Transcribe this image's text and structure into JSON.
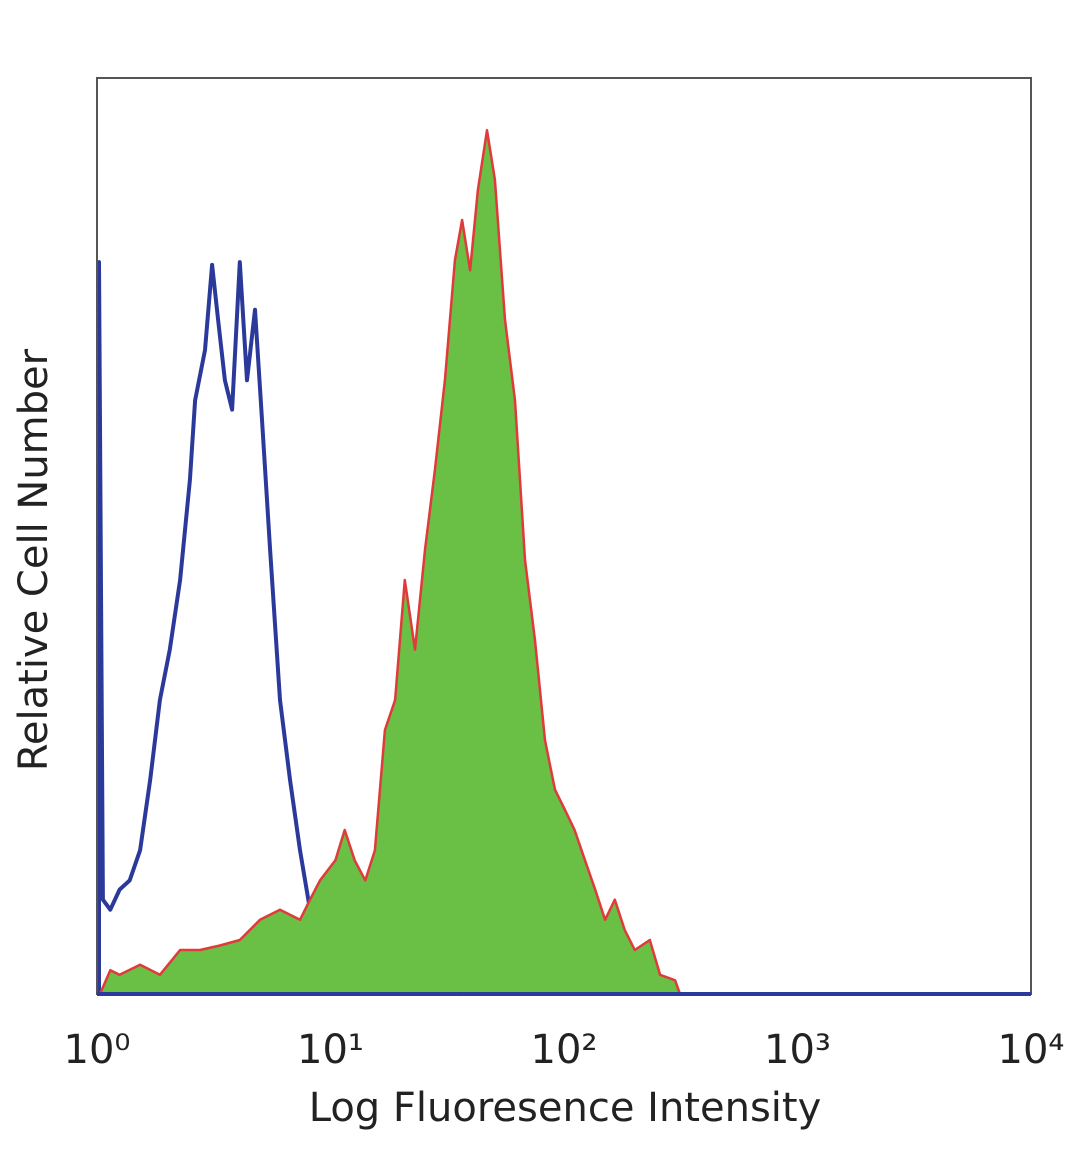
{
  "chart_data": {
    "type": "histogram-overlay",
    "xlabel": "Log Fluoresence Intensity",
    "ylabel": "Relative Cell Number",
    "xscale": "log",
    "xlim": [
      1,
      10000
    ],
    "xticks": [
      {
        "value": 1,
        "label": "10⁰"
      },
      {
        "value": 10,
        "label": "10¹"
      },
      {
        "value": 100,
        "label": "10²"
      },
      {
        "value": 1000,
        "label": "10³"
      },
      {
        "value": 10000,
        "label": "10⁴"
      }
    ],
    "ylim": [
      0,
      100
    ],
    "series": [
      {
        "color": "#2b3a9a",
        "filled": false,
        "x": [
          1.02,
          1.06,
          1.14,
          1.25,
          1.38,
          1.53,
          1.69,
          1.86,
          2.05,
          2.27,
          2.5,
          2.63,
          2.9,
          3.11,
          3.3,
          3.53,
          3.79,
          4.09,
          4.39,
          4.75,
          5.09,
          5.51,
          6.08,
          6.71,
          7.4,
          8.17,
          9.02,
          9.95,
          11.0,
          13.4,
          16.3,
          29.4,
          35.9,
          43.7,
          53.2,
          10000
        ],
        "values": [
          79.9,
          10.3,
          9.2,
          11.4,
          12.4,
          15.7,
          23.4,
          32.1,
          37.6,
          45.2,
          56.1,
          64.8,
          70.3,
          79.6,
          73.6,
          67.0,
          63.8,
          79.9,
          67.0,
          74.7,
          62.7,
          48.5,
          32.1,
          23.4,
          15.7,
          9.2,
          4.8,
          2.1,
          0.4,
          2.1,
          0,
          2.1,
          0,
          2.1,
          0,
          0
        ]
      },
      {
        "color": "#6abf45",
        "edge_color": "#e03a3a",
        "filled": true,
        "x": [
          1.03,
          1.14,
          1.25,
          1.53,
          1.86,
          2.27,
          2.76,
          3.36,
          4.09,
          4.99,
          6.08,
          7.4,
          8.17,
          9.02,
          10.5,
          11.5,
          12.7,
          14.1,
          15.5,
          17.1,
          18.9,
          20.8,
          23.0,
          25.4,
          28.0,
          30.9,
          34.1,
          36.6,
          39.6,
          42.8,
          46.8,
          50.6,
          55.9,
          61.7,
          68.1,
          75.1,
          82.9,
          91.5,
          101,
          111,
          123,
          136,
          150,
          165,
          182,
          201,
          233,
          258,
          299,
          314
        ],
        "values": [
          0,
          2.6,
          2.1,
          3.2,
          2.1,
          4.8,
          4.8,
          5.3,
          5.9,
          8.1,
          9.2,
          8.1,
          10.3,
          12.4,
          14.6,
          17.9,
          14.6,
          12.4,
          15.7,
          28.8,
          32.1,
          45.2,
          37.6,
          48.5,
          57.2,
          67.0,
          80.1,
          84.5,
          79.0,
          87.8,
          94.3,
          88.9,
          73.6,
          64.8,
          47.4,
          38.6,
          27.7,
          22.3,
          20.1,
          17.9,
          14.6,
          11.4,
          8.1,
          10.3,
          7.0,
          4.8,
          5.9,
          2.1,
          1.5,
          0
        ]
      }
    ]
  }
}
